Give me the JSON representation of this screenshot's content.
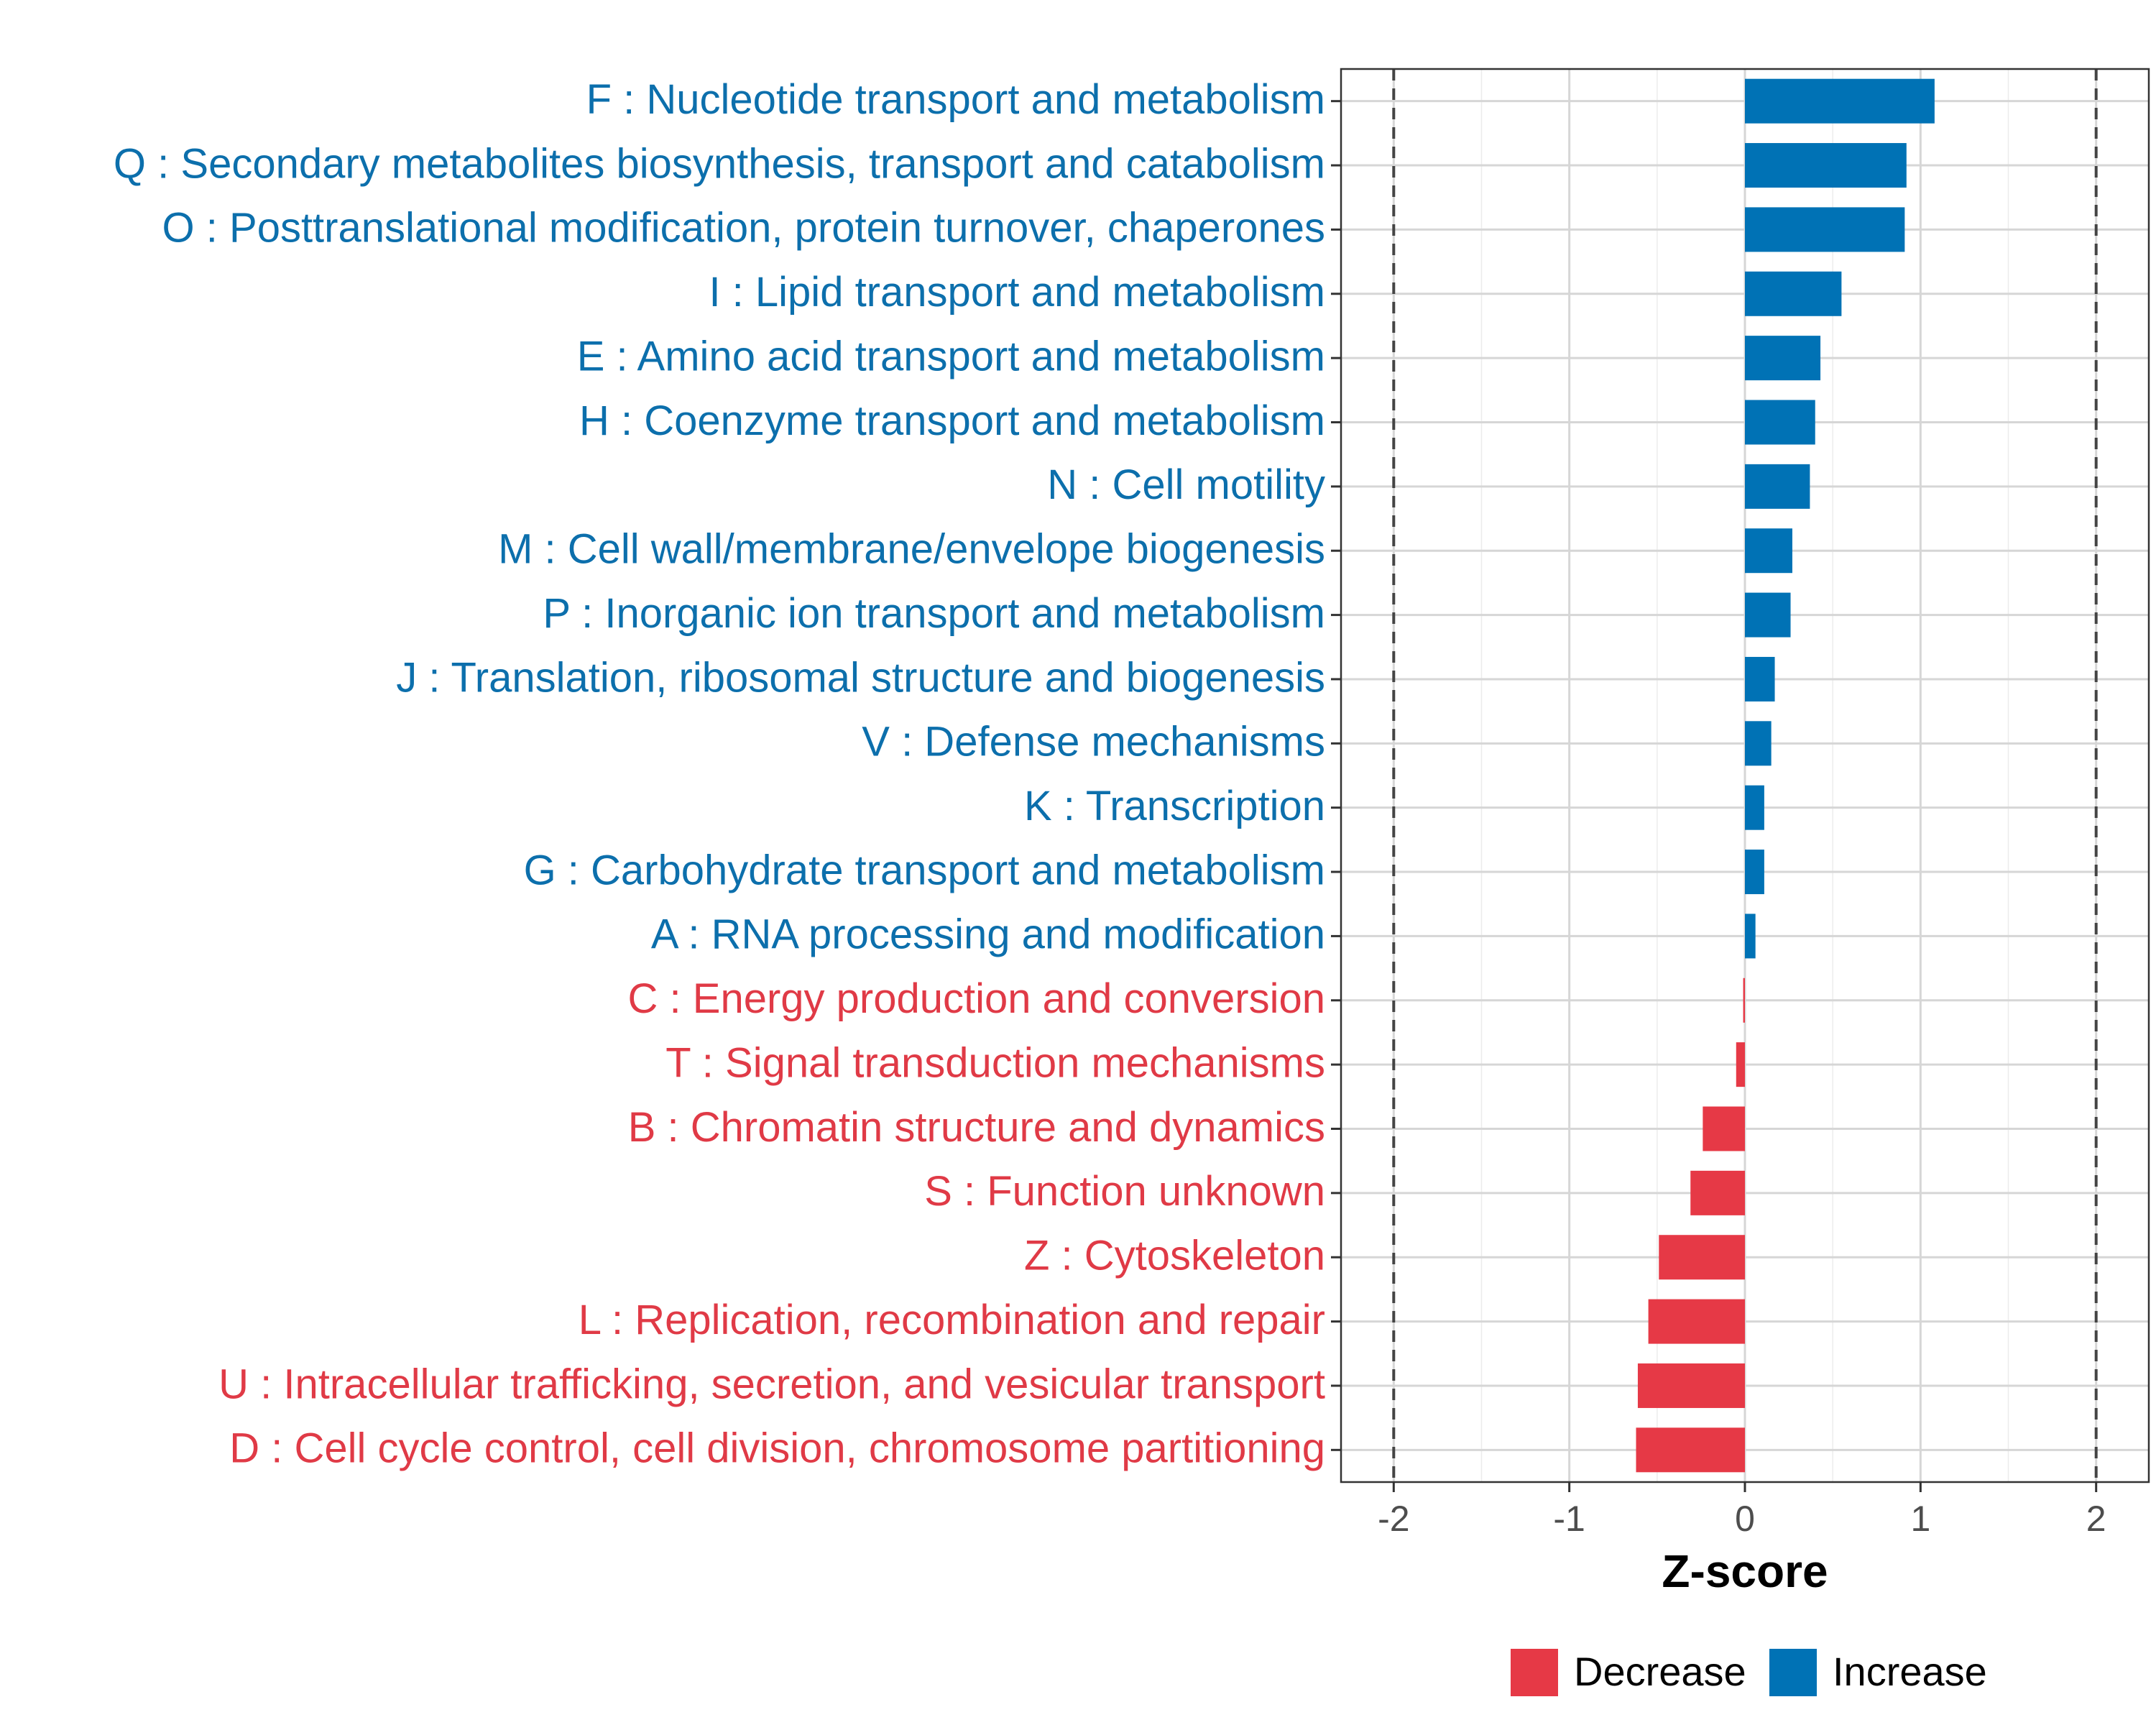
{
  "chart_data": {
    "type": "bar",
    "orientation": "horizontal",
    "title": "",
    "xlabel": "Z-score",
    "ylabel": "",
    "xlim": [
      -2.3,
      2.3
    ],
    "xticks": [
      -2,
      -1,
      0,
      1,
      2
    ],
    "xtick_labels": [
      "-2",
      "-1",
      "0",
      "1",
      "2"
    ],
    "reference_lines": [
      -2,
      2
    ],
    "grid": true,
    "legend_position": "bottom",
    "colors": {
      "Increase": "#0072b5",
      "Decrease": "#e63946",
      "text_increase": "#0c6fac",
      "text_decrease": "#e03a46"
    },
    "legend": [
      {
        "name": "Decrease",
        "color": "#e63946"
      },
      {
        "name": "Increase",
        "color": "#0072b5"
      }
    ],
    "categories": [
      "F : Nucleotide transport and metabolism",
      "Q : Secondary metabolites biosynthesis, transport and catabolism",
      "O : Posttranslational modification, protein turnover, chaperones",
      "I : Lipid transport and metabolism",
      "E : Amino acid transport and metabolism",
      "H : Coenzyme transport and metabolism",
      "N : Cell motility",
      "M : Cell wall/membrane/envelope biogenesis",
      "P : Inorganic ion transport and metabolism",
      "J : Translation, ribosomal structure and biogenesis",
      "V : Defense mechanisms",
      "K : Transcription",
      "G : Carbohydrate transport and metabolism",
      "A : RNA processing and modification",
      "C : Energy production and conversion",
      "T : Signal transduction mechanisms",
      "B : Chromatin structure and dynamics",
      "S : Function unknown",
      "Z : Cytoskeleton",
      "L : Replication, recombination and repair",
      "U : Intracellular trafficking, secretion, and vesicular transport",
      "D : Cell cycle control, cell division, chromosome partitioning"
    ],
    "values": [
      1.08,
      0.92,
      0.91,
      0.55,
      0.43,
      0.4,
      0.37,
      0.27,
      0.26,
      0.17,
      0.15,
      0.11,
      0.11,
      0.06,
      -0.01,
      -0.05,
      -0.24,
      -0.31,
      -0.49,
      -0.55,
      -0.61,
      -0.62
    ],
    "groups": [
      "Increase",
      "Increase",
      "Increase",
      "Increase",
      "Increase",
      "Increase",
      "Increase",
      "Increase",
      "Increase",
      "Increase",
      "Increase",
      "Increase",
      "Increase",
      "Increase",
      "Decrease",
      "Decrease",
      "Decrease",
      "Decrease",
      "Decrease",
      "Decrease",
      "Decrease",
      "Decrease"
    ]
  }
}
